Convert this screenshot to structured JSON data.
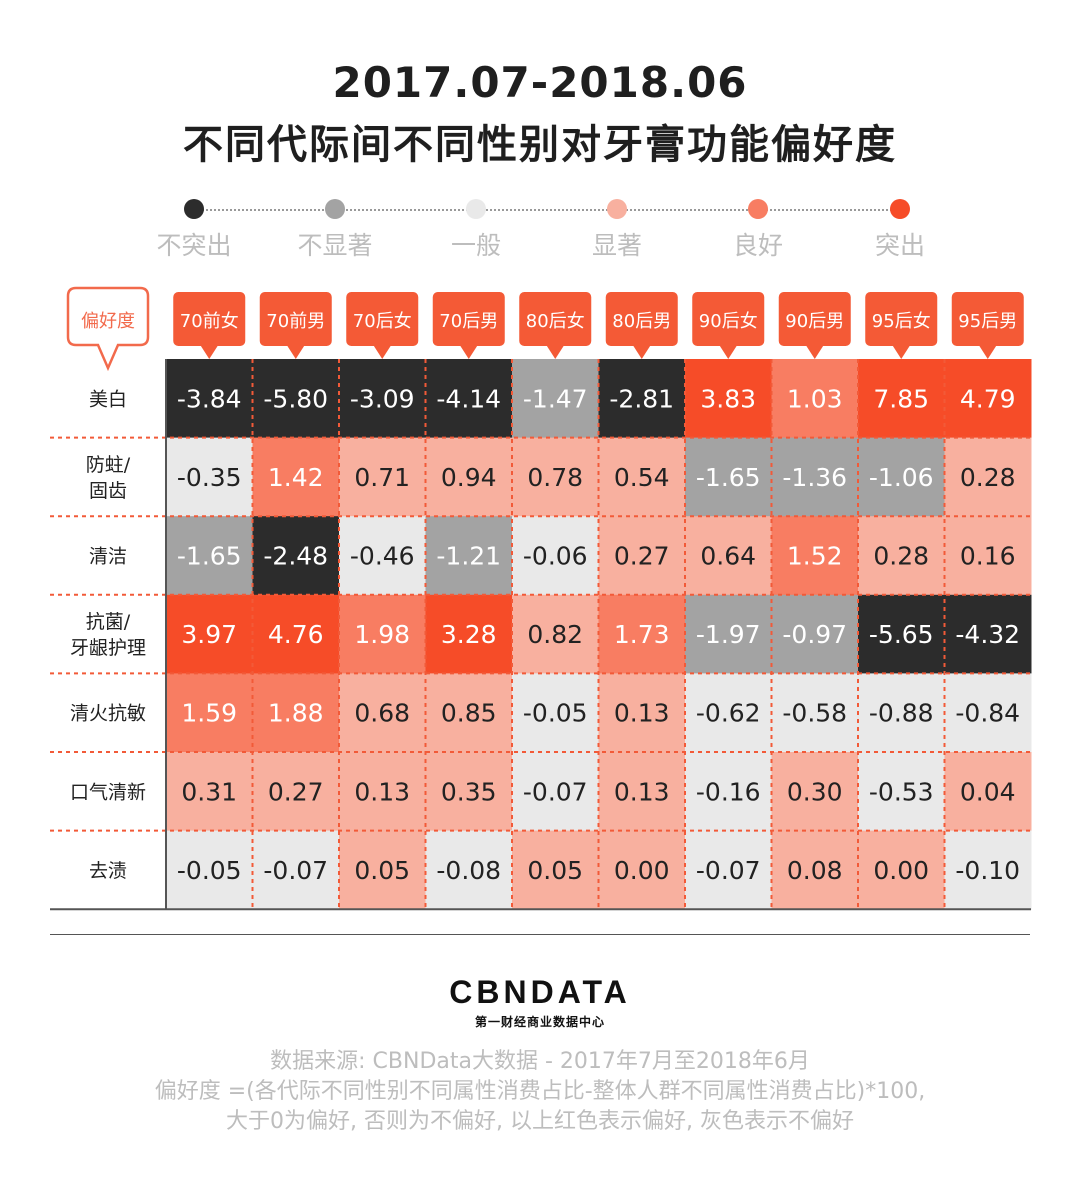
{
  "title_line1": "2017.07-2018.06",
  "title_line2": "不同代际间不同性别对牙膏功能偏好度",
  "legend": [
    {
      "label": "不突出",
      "color": "#2c2c2c"
    },
    {
      "label": "不显著",
      "color": "#a3a3a3"
    },
    {
      "label": "一般",
      "color": "#e9e9e9"
    },
    {
      "label": "显著",
      "color": "#f8b09f"
    },
    {
      "label": "良好",
      "color": "#f87d62"
    },
    {
      "label": "突出",
      "color": "#f64c28"
    }
  ],
  "chart_data": {
    "type": "heatmap",
    "row_header": "偏好度",
    "columns": [
      "70前女",
      "70前男",
      "70后女",
      "70后男",
      "80后女",
      "80后男",
      "90后女",
      "90后男",
      "95后女",
      "95后男"
    ],
    "rows": [
      {
        "label": [
          "美白"
        ],
        "values": [
          -3.84,
          -5.8,
          -3.09,
          -4.14,
          -1.47,
          -2.81,
          3.83,
          1.03,
          7.85,
          4.79
        ]
      },
      {
        "label": [
          "防蛀/",
          "固齿"
        ],
        "values": [
          -0.35,
          1.42,
          0.71,
          0.94,
          0.78,
          0.54,
          -1.65,
          -1.36,
          -1.06,
          0.28
        ]
      },
      {
        "label": [
          "清洁"
        ],
        "values": [
          -1.65,
          -2.48,
          -0.46,
          -1.21,
          -0.06,
          0.27,
          0.64,
          1.52,
          0.28,
          0.16
        ]
      },
      {
        "label": [
          "抗菌/",
          "牙龈护理"
        ],
        "values": [
          3.97,
          4.76,
          1.98,
          3.28,
          0.82,
          1.73,
          -1.97,
          -0.97,
          -5.65,
          -4.32
        ]
      },
      {
        "label": [
          "清火抗敏"
        ],
        "values": [
          1.59,
          1.88,
          0.68,
          0.85,
          -0.05,
          0.13,
          -0.62,
          -0.58,
          -0.88,
          -0.84
        ]
      },
      {
        "label": [
          "口气清新"
        ],
        "values": [
          0.31,
          0.27,
          0.13,
          0.35,
          -0.07,
          0.13,
          -0.16,
          0.3,
          -0.53,
          0.04
        ]
      },
      {
        "label": [
          "去渍"
        ],
        "values": [
          -0.05,
          -0.07,
          0.05,
          -0.08,
          0.05,
          0.0,
          -0.07,
          0.08,
          0.0,
          -0.1
        ]
      }
    ]
  },
  "brand": "CBNDATA",
  "brand_sub": "第一财经商业数据中心",
  "notes": [
    "数据来源: CBNData大数据 - 2017年7月至2018年6月",
    "偏好度 =(各代际不同性别不同属性消费占比-整体人群不同属性消费占比)*100,",
    "大于0为偏好, 否则为不偏好, 以上红色表示偏好, 灰色表示不偏好"
  ]
}
